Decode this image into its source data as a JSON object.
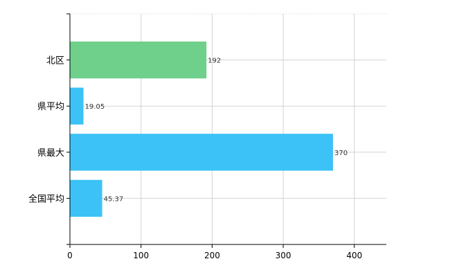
{
  "chart_data": {
    "type": "bar",
    "orientation": "horizontal",
    "categories": [
      "北区",
      "県平均",
      "県最大",
      "全国平均"
    ],
    "values": [
      192,
      19.05,
      370,
      45.37
    ],
    "value_labels": [
      "192",
      "19.05",
      "370",
      "45.37"
    ],
    "bar_colors": [
      "#6fd08c",
      "#3cc2f6",
      "#3cc2f6",
      "#3cc2f6"
    ],
    "xlim": [
      0,
      445
    ],
    "xticks": [
      0,
      100,
      200,
      300,
      400
    ],
    "grid": true,
    "legend": "none"
  }
}
